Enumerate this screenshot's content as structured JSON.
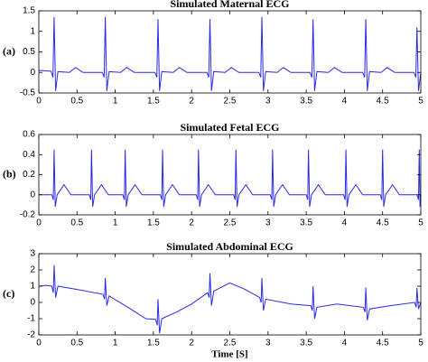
{
  "chart_data": [
    {
      "type": "line",
      "title": "Simulated Maternal ECG",
      "panel_label": "(a)",
      "color": "#2a2ae6",
      "xlim": [
        0,
        5
      ],
      "xticks": [
        0,
        0.5,
        1,
        1.5,
        2,
        2.5,
        3,
        3.5,
        4,
        4.5,
        5
      ],
      "ylim": [
        -0.5,
        1.5
      ],
      "yticks": [
        -0.5,
        0,
        0.5,
        1,
        1.5
      ],
      "x": [
        0,
        0.16,
        0.185,
        0.2,
        0.22,
        0.25,
        0.4,
        0.48,
        0.58,
        0.83,
        0.855,
        0.87,
        0.89,
        0.92,
        1.07,
        1.15,
        1.25,
        1.52,
        1.545,
        1.56,
        1.58,
        1.61,
        1.76,
        1.84,
        1.94,
        2.2,
        2.225,
        2.24,
        2.26,
        2.29,
        2.44,
        2.52,
        2.62,
        2.88,
        2.905,
        2.92,
        2.94,
        2.97,
        3.12,
        3.2,
        3.3,
        3.55,
        3.575,
        3.59,
        3.61,
        3.64,
        3.79,
        3.87,
        3.97,
        4.24,
        4.265,
        4.28,
        4.3,
        4.33,
        4.48,
        4.56,
        4.66,
        4.91,
        4.935,
        4.95,
        4.97,
        5
      ],
      "values": [
        0.05,
        0.03,
        -0.12,
        1.35,
        -0.45,
        0.02,
        0,
        0.12,
        0,
        0,
        -0.12,
        1.35,
        -0.45,
        0.02,
        0,
        0.12,
        0,
        0,
        -0.12,
        1.3,
        -0.45,
        0.02,
        0,
        0.12,
        0,
        0,
        -0.12,
        1.3,
        -0.45,
        0.02,
        0,
        0.12,
        0,
        0,
        -0.12,
        1.35,
        -0.45,
        0.02,
        0,
        0.12,
        0,
        0,
        -0.12,
        1.3,
        -0.45,
        0.02,
        0,
        0.12,
        0,
        0,
        -0.12,
        1.3,
        -0.45,
        0.02,
        0,
        0.12,
        0,
        0,
        -0.12,
        1.1,
        -0.45,
        0
      ]
    },
    {
      "type": "line",
      "title": "Simulated Fetal ECG",
      "panel_label": "(b)",
      "color": "#2a2ae6",
      "xlim": [
        0,
        5
      ],
      "xticks": [
        0,
        0.5,
        1,
        1.5,
        2,
        2.5,
        3,
        3.5,
        4,
        4.5,
        5
      ],
      "ylim": [
        -0.2,
        0.6
      ],
      "yticks": [
        -0.2,
        0,
        0.2,
        0.4,
        0.6
      ],
      "x": [
        0,
        0.17,
        0.19,
        0.2,
        0.215,
        0.24,
        0.33,
        0.42,
        0.66,
        0.68,
        0.69,
        0.705,
        0.73,
        0.82,
        0.91,
        1.1,
        1.12,
        1.13,
        1.145,
        1.17,
        1.26,
        1.35,
        1.59,
        1.61,
        1.62,
        1.635,
        1.66,
        1.75,
        1.84,
        2.06,
        2.08,
        2.09,
        2.105,
        2.13,
        2.22,
        2.31,
        2.55,
        2.57,
        2.58,
        2.595,
        2.62,
        2.71,
        2.8,
        3.03,
        3.05,
        3.06,
        3.075,
        3.1,
        3.19,
        3.28,
        3.5,
        3.52,
        3.53,
        3.545,
        3.57,
        3.66,
        3.75,
        3.99,
        4.01,
        4.02,
        4.035,
        4.06,
        4.15,
        4.24,
        4.47,
        4.49,
        4.5,
        4.515,
        4.54,
        4.63,
        4.72,
        4.95,
        4.97,
        4.98,
        4.99,
        5
      ],
      "values": [
        0,
        0,
        -0.05,
        0.45,
        -0.12,
        0,
        0.1,
        0,
        0,
        -0.05,
        0.45,
        -0.12,
        0,
        0.1,
        0,
        0,
        -0.05,
        0.45,
        -0.12,
        0,
        0.1,
        0,
        0,
        -0.05,
        0.45,
        -0.12,
        0,
        0.1,
        0,
        0,
        -0.05,
        0.45,
        -0.12,
        0,
        0.1,
        0,
        0,
        -0.05,
        0.45,
        -0.12,
        0,
        0.1,
        0,
        0,
        -0.05,
        0.45,
        -0.12,
        0,
        0.1,
        0,
        0,
        -0.05,
        0.45,
        -0.12,
        0,
        0.1,
        0,
        0,
        -0.05,
        0.45,
        -0.12,
        0,
        0.1,
        0,
        0,
        -0.05,
        0.45,
        -0.12,
        0,
        0.1,
        0,
        0,
        -0.05,
        0.45,
        -0.12,
        0
      ]
    },
    {
      "type": "line",
      "title": "Simulated Abdominal ECG",
      "panel_label": "(c)",
      "xlabel": "Time [S]",
      "color": "#2a2ae6",
      "xlim": [
        0,
        5
      ],
      "xticks": [
        0,
        0.5,
        1,
        1.5,
        2,
        2.5,
        3,
        3.5,
        4,
        4.5,
        5
      ],
      "ylim": [
        -2,
        3
      ],
      "yticks": [
        -2,
        -1,
        0,
        1,
        2,
        3
      ],
      "x": [
        0,
        0.1,
        0.17,
        0.19,
        0.2,
        0.22,
        0.25,
        0.5,
        0.84,
        0.86,
        0.87,
        0.89,
        0.92,
        1.2,
        1.4,
        1.53,
        1.55,
        1.56,
        1.58,
        1.61,
        1.8,
        2,
        2.21,
        2.23,
        2.24,
        2.26,
        2.29,
        2.5,
        2.7,
        2.89,
        2.91,
        2.92,
        2.94,
        2.97,
        3.3,
        3.56,
        3.58,
        3.59,
        3.61,
        3.64,
        3.9,
        4.25,
        4.27,
        4.28,
        4.3,
        4.33,
        4.6,
        4.92,
        4.94,
        4.95,
        4.97,
        5
      ],
      "values": [
        1,
        1.05,
        1,
        0.6,
        2.3,
        0.3,
        1,
        0.8,
        0.5,
        0.2,
        1.5,
        -0.2,
        0.4,
        -0.4,
        -1,
        -1.05,
        -1.4,
        0.2,
        -1.9,
        -1,
        -0.6,
        -0.1,
        0.6,
        0.3,
        1.8,
        -0.2,
        0.7,
        1.2,
        0.8,
        0.3,
        0,
        1.5,
        -0.5,
        0.2,
        -0.1,
        -0.2,
        -0.5,
        1,
        -1,
        -0.3,
        -0.1,
        -0.3,
        -0.6,
        0.9,
        -1.1,
        -0.4,
        -0.2,
        0,
        -0.3,
        0.9,
        -0.4,
        0
      ]
    }
  ]
}
